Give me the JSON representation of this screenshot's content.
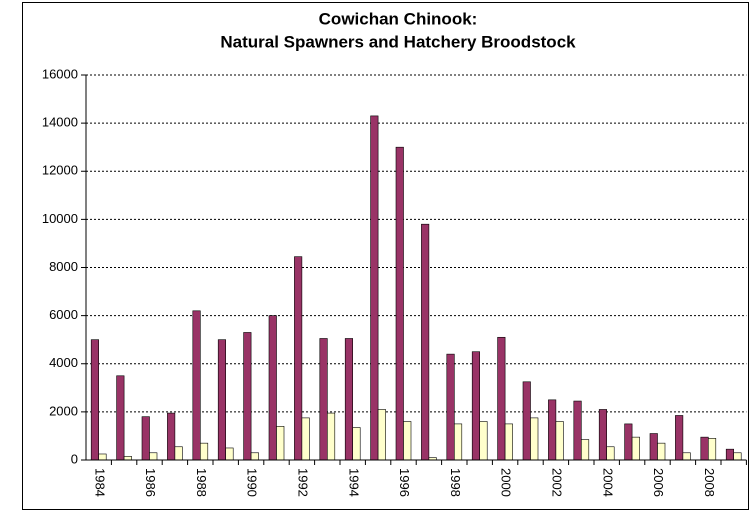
{
  "chart_data": {
    "type": "bar",
    "title": [
      "Cowichan Chinook:",
      "Natural Spawners and Hatchery Broodstock"
    ],
    "categories": [
      "1984",
      null,
      "1986",
      null,
      "1988",
      null,
      "1990",
      null,
      "1992",
      null,
      "1994",
      null,
      "1996",
      null,
      "1998",
      null,
      "2000",
      null,
      "2002",
      null,
      "2004",
      null,
      "2006",
      null,
      "2008",
      null
    ],
    "series": [
      {
        "color": "#993366",
        "values": [
          5000,
          3500,
          1800,
          1950,
          6200,
          5000,
          5300,
          6000,
          8450,
          5050,
          5050,
          14300,
          13000,
          9800,
          4400,
          4500,
          5100,
          3250,
          2500,
          2450,
          2100,
          1500,
          1100,
          1850,
          950,
          450
        ]
      },
      {
        "color": "#ffffcc",
        "values": [
          250,
          150,
          300,
          550,
          700,
          500,
          300,
          1400,
          1750,
          1950,
          1350,
          2100,
          1600,
          100,
          1500,
          1600,
          1500,
          1750,
          1600,
          850,
          550,
          950,
          700,
          300,
          900,
          300
        ]
      }
    ],
    "ylim": [
      0,
      16000
    ],
    "yticks": [
      0,
      2000,
      4000,
      6000,
      8000,
      10000,
      12000,
      14000,
      16000
    ],
    "grid": true
  }
}
